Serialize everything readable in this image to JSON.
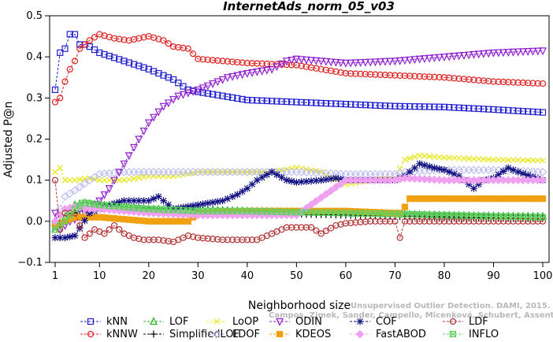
{
  "chart_data": {
    "type": "line",
    "title": "InternetAds_norm_05_v03",
    "xlabel": "Neighborhood size",
    "ylabel": "Adjusted P@n",
    "xlim": [
      0,
      100
    ],
    "ylim": [
      -0.1,
      0.5
    ],
    "xticks": [
      1,
      10,
      20,
      30,
      40,
      50,
      60,
      70,
      80,
      90,
      100
    ],
    "yticks": [
      -0.1,
      0.0,
      0.1,
      0.2,
      0.3,
      0.4,
      0.5
    ],
    "ytick_labels": [
      "−0.1",
      "0.0",
      "0.1",
      "0.2",
      "0.3",
      "0.4",
      "0.5"
    ],
    "grid": false,
    "legend_position": "bottom",
    "watermark_lines": [
      "Unsupervised Outlier Detection. DAMI, 2015.",
      "Campos, Zimek, Sander, Campello, Micenková, Schubert, Assent, Houle"
    ],
    "series": [
      {
        "name": "kNN",
        "color": "#2020d0",
        "marker": "square",
        "points": [
          [
            1,
            0.32
          ],
          [
            2,
            0.41
          ],
          [
            3,
            0.42
          ],
          [
            4,
            0.455
          ],
          [
            5,
            0.455
          ],
          [
            6,
            0.43
          ],
          [
            7,
            0.43
          ],
          [
            8,
            0.425
          ],
          [
            10,
            0.41
          ],
          [
            15,
            0.39
          ],
          [
            20,
            0.37
          ],
          [
            25,
            0.345
          ],
          [
            28,
            0.32
          ],
          [
            30,
            0.315
          ],
          [
            35,
            0.305
          ],
          [
            40,
            0.295
          ],
          [
            50,
            0.29
          ],
          [
            60,
            0.285
          ],
          [
            70,
            0.28
          ],
          [
            80,
            0.278
          ],
          [
            90,
            0.272
          ],
          [
            100,
            0.265
          ]
        ]
      },
      {
        "name": "kNNW",
        "color": "#e02020",
        "marker": "circle",
        "points": [
          [
            1,
            0.29
          ],
          [
            2,
            0.3
          ],
          [
            3,
            0.34
          ],
          [
            4,
            0.37
          ],
          [
            5,
            0.39
          ],
          [
            6,
            0.42
          ],
          [
            8,
            0.44
          ],
          [
            10,
            0.455
          ],
          [
            13,
            0.445
          ],
          [
            16,
            0.44
          ],
          [
            20,
            0.45
          ],
          [
            23,
            0.44
          ],
          [
            25,
            0.425
          ],
          [
            28,
            0.42
          ],
          [
            30,
            0.395
          ],
          [
            35,
            0.39
          ],
          [
            40,
            0.385
          ],
          [
            50,
            0.38
          ],
          [
            55,
            0.37
          ],
          [
            60,
            0.36
          ],
          [
            70,
            0.355
          ],
          [
            80,
            0.35
          ],
          [
            90,
            0.34
          ],
          [
            100,
            0.335
          ]
        ]
      },
      {
        "name": "LOF",
        "color": "#20b020",
        "marker": "triangle-up",
        "points": [
          [
            1,
            -0.02
          ],
          [
            3,
            0.01
          ],
          [
            5,
            0.04
          ],
          [
            7,
            0.045
          ],
          [
            10,
            0.04
          ],
          [
            15,
            0.035
          ],
          [
            20,
            0.03
          ],
          [
            30,
            0.028
          ],
          [
            40,
            0.025
          ],
          [
            50,
            0.023
          ],
          [
            60,
            0.02
          ],
          [
            70,
            0.018
          ],
          [
            80,
            0.015
          ],
          [
            90,
            0.013
          ],
          [
            100,
            0.012
          ]
        ]
      },
      {
        "name": "SimplifiedLOF",
        "color": "#000000",
        "marker": "plus",
        "points": [
          [
            1,
            -0.01
          ],
          [
            3,
            0.0
          ],
          [
            5,
            0.02
          ],
          [
            7,
            0.03
          ],
          [
            10,
            0.03
          ],
          [
            20,
            0.025
          ],
          [
            30,
            0.02
          ],
          [
            40,
            0.02
          ],
          [
            50,
            0.018
          ],
          [
            60,
            0.015
          ],
          [
            70,
            0.012
          ],
          [
            80,
            0.01
          ],
          [
            90,
            0.008
          ],
          [
            100,
            0.007
          ]
        ]
      },
      {
        "name": "LoOP",
        "color": "#e8e820",
        "marker": "x",
        "points": [
          [
            1,
            0.12
          ],
          [
            2,
            0.13
          ],
          [
            3,
            0.1
          ],
          [
            5,
            0.1
          ],
          [
            8,
            0.105
          ],
          [
            10,
            0.1
          ],
          [
            15,
            0.1
          ],
          [
            20,
            0.11
          ],
          [
            25,
            0.11
          ],
          [
            30,
            0.12
          ],
          [
            40,
            0.12
          ],
          [
            45,
            0.12
          ],
          [
            50,
            0.13
          ],
          [
            55,
            0.12
          ],
          [
            60,
            0.09
          ],
          [
            65,
            0.1
          ],
          [
            70,
            0.105
          ],
          [
            72,
            0.15
          ],
          [
            75,
            0.16
          ],
          [
            80,
            0.155
          ],
          [
            90,
            0.15
          ],
          [
            100,
            0.148
          ]
        ]
      },
      {
        "name": "LDOF",
        "color": "#c0c0f0",
        "marker": "diamond",
        "points": [
          [
            1,
            0.0
          ],
          [
            3,
            0.06
          ],
          [
            5,
            0.075
          ],
          [
            8,
            0.1
          ],
          [
            10,
            0.115
          ],
          [
            15,
            0.12
          ],
          [
            20,
            0.12
          ],
          [
            30,
            0.12
          ],
          [
            40,
            0.12
          ],
          [
            50,
            0.12
          ],
          [
            60,
            0.115
          ],
          [
            70,
            0.115
          ],
          [
            72,
            0.12
          ],
          [
            80,
            0.125
          ],
          [
            90,
            0.125
          ],
          [
            100,
            0.12
          ]
        ]
      },
      {
        "name": "ODIN",
        "color": "#9020d0",
        "marker": "triangle-down",
        "points": [
          [
            1,
            0.02
          ],
          [
            2,
            -0.02
          ],
          [
            4,
            0.0
          ],
          [
            6,
            0.01
          ],
          [
            8,
            0.03
          ],
          [
            10,
            0.05
          ],
          [
            12,
            0.08
          ],
          [
            14,
            0.12
          ],
          [
            16,
            0.16
          ],
          [
            18,
            0.2
          ],
          [
            20,
            0.24
          ],
          [
            23,
            0.28
          ],
          [
            26,
            0.305
          ],
          [
            30,
            0.32
          ],
          [
            33,
            0.335
          ],
          [
            36,
            0.35
          ],
          [
            40,
            0.36
          ],
          [
            45,
            0.37
          ],
          [
            48,
            0.39
          ],
          [
            50,
            0.395
          ],
          [
            55,
            0.39
          ],
          [
            60,
            0.385
          ],
          [
            70,
            0.39
          ],
          [
            80,
            0.4
          ],
          [
            90,
            0.41
          ],
          [
            100,
            0.415
          ]
        ]
      },
      {
        "name": "KDEOS",
        "color": "#f0a010",
        "marker": "square-filled",
        "points": [
          [
            1,
            -0.01
          ],
          [
            3,
            0.0
          ],
          [
            5,
            0.01
          ],
          [
            8,
            0.01
          ],
          [
            10,
            0.01
          ],
          [
            15,
            0.005
          ],
          [
            20,
            0.0
          ],
          [
            25,
            0.0
          ],
          [
            28,
            0.0
          ],
          [
            30,
            0.02
          ],
          [
            40,
            0.025
          ],
          [
            50,
            0.025
          ],
          [
            60,
            0.025
          ],
          [
            70,
            0.02
          ],
          [
            71,
            0.02
          ],
          [
            72,
            0.035
          ],
          [
            73,
            0.055
          ],
          [
            80,
            0.055
          ],
          [
            90,
            0.055
          ],
          [
            100,
            0.055
          ]
        ]
      },
      {
        "name": "COF",
        "color": "#101080",
        "marker": "asterisk",
        "points": [
          [
            1,
            -0.04
          ],
          [
            3,
            -0.04
          ],
          [
            5,
            -0.035
          ],
          [
            8,
            0.02
          ],
          [
            10,
            0.03
          ],
          [
            12,
            0.04
          ],
          [
            15,
            0.05
          ],
          [
            20,
            0.05
          ],
          [
            22,
            0.06
          ],
          [
            25,
            0.03
          ],
          [
            30,
            0.04
          ],
          [
            35,
            0.05
          ],
          [
            38,
            0.065
          ],
          [
            40,
            0.08
          ],
          [
            42,
            0.1
          ],
          [
            45,
            0.12
          ],
          [
            48,
            0.1
          ],
          [
            50,
            0.095
          ],
          [
            55,
            0.1
          ],
          [
            58,
            0.105
          ],
          [
            60,
            0.1
          ],
          [
            62,
            0.1
          ],
          [
            65,
            0.1
          ],
          [
            70,
            0.1
          ],
          [
            72,
            0.11
          ],
          [
            75,
            0.14
          ],
          [
            78,
            0.13
          ],
          [
            80,
            0.125
          ],
          [
            83,
            0.11
          ],
          [
            86,
            0.08
          ],
          [
            88,
            0.1
          ],
          [
            90,
            0.105
          ],
          [
            93,
            0.13
          ],
          [
            95,
            0.12
          ],
          [
            100,
            0.1
          ]
        ]
      },
      {
        "name": "FastABOD",
        "color": "#f0a0f0",
        "marker": "diamond-filled",
        "points": [
          [
            1,
            0.0
          ],
          [
            3,
            0.03
          ],
          [
            5,
            0.035
          ],
          [
            8,
            0.03
          ],
          [
            10,
            0.03
          ],
          [
            20,
            0.02
          ],
          [
            30,
            0.015
          ],
          [
            40,
            0.015
          ],
          [
            50,
            0.015
          ],
          [
            60,
            0.1
          ],
          [
            70,
            0.1
          ],
          [
            72,
            0.105
          ],
          [
            80,
            0.1
          ],
          [
            90,
            0.1
          ],
          [
            100,
            0.1
          ]
        ]
      },
      {
        "name": "LDF",
        "color": "#b03030",
        "marker": "circle-filled",
        "points": [
          [
            1,
            0.1
          ],
          [
            2,
            -0.02
          ],
          [
            3,
            0.02
          ],
          [
            5,
            0.02
          ],
          [
            7,
            -0.04
          ],
          [
            9,
            -0.02
          ],
          [
            11,
            -0.03
          ],
          [
            13,
            -0.01
          ],
          [
            15,
            -0.03
          ],
          [
            17,
            -0.04
          ],
          [
            19,
            -0.045
          ],
          [
            22,
            -0.045
          ],
          [
            25,
            -0.05
          ],
          [
            28,
            -0.035
          ],
          [
            30,
            -0.04
          ],
          [
            35,
            -0.045
          ],
          [
            40,
            -0.045
          ],
          [
            42,
            -0.045
          ],
          [
            45,
            -0.03
          ],
          [
            48,
            -0.015
          ],
          [
            50,
            -0.015
          ],
          [
            53,
            -0.015
          ],
          [
            55,
            -0.03
          ],
          [
            58,
            -0.01
          ],
          [
            60,
            -0.005
          ],
          [
            65,
            0.0
          ],
          [
            70,
            0.0
          ],
          [
            71,
            -0.04
          ],
          [
            72,
            0.0
          ],
          [
            80,
            0.0
          ],
          [
            90,
            0.0
          ],
          [
            100,
            0.0
          ]
        ]
      },
      {
        "name": "INFLO",
        "color": "#60d060",
        "marker": "square-x",
        "points": [
          [
            1,
            -0.02
          ],
          [
            3,
            0.0
          ],
          [
            5,
            0.03
          ],
          [
            7,
            0.045
          ],
          [
            10,
            0.04
          ],
          [
            15,
            0.035
          ],
          [
            20,
            0.03
          ],
          [
            30,
            0.025
          ],
          [
            40,
            0.025
          ],
          [
            50,
            0.022
          ],
          [
            60,
            0.02
          ],
          [
            70,
            0.018
          ],
          [
            80,
            0.015
          ],
          [
            90,
            0.012
          ],
          [
            100,
            0.01
          ]
        ]
      }
    ]
  }
}
